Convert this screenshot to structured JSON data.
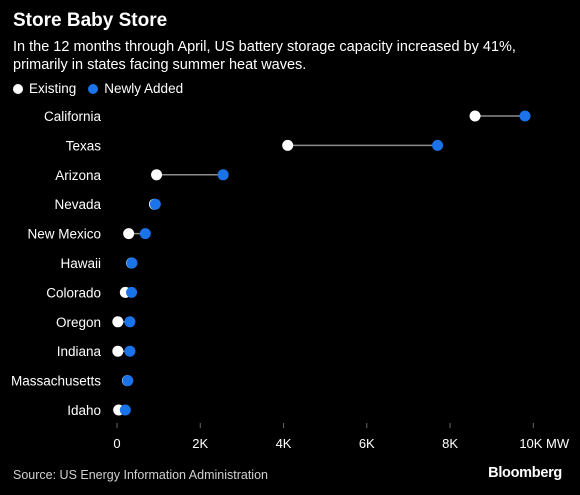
{
  "title": "Store Baby Store",
  "subtitle": "In the 12 months through April, US battery storage capacity increased by 41%, primarily in states facing summer heat waves.",
  "legend": {
    "existing_label": "Existing",
    "new_label": "Newly Added"
  },
  "colors": {
    "existing": "#ffffff",
    "new": "#1a73e8",
    "connector": "#8c8c8c",
    "axis": "#666666",
    "background": "#000000"
  },
  "source": "Source: US Energy Information Administration",
  "brand": "Bloomberg",
  "chart_data": {
    "type": "scatter",
    "subtype": "dumbbell",
    "categories": [
      "California",
      "Texas",
      "Arizona",
      "Nevada",
      "New Mexico",
      "Hawaii",
      "Colorado",
      "Oregon",
      "Indiana",
      "Massachusetts",
      "Idaho"
    ],
    "series": [
      {
        "name": "Existing",
        "values": [
          8600,
          4100,
          950,
          900,
          280,
          350,
          200,
          20,
          20,
          250,
          40
        ]
      },
      {
        "name": "Newly Added",
        "values": [
          9800,
          7700,
          2550,
          920,
          680,
          360,
          350,
          310,
          310,
          260,
          200
        ]
      }
    ],
    "xlim": [
      0,
      10500
    ],
    "xticks": [
      0,
      2000,
      4000,
      6000,
      8000,
      10000
    ],
    "xtick_labels": [
      "0",
      "2K",
      "4K",
      "6K",
      "8K",
      "10K MW"
    ],
    "grid": false
  }
}
